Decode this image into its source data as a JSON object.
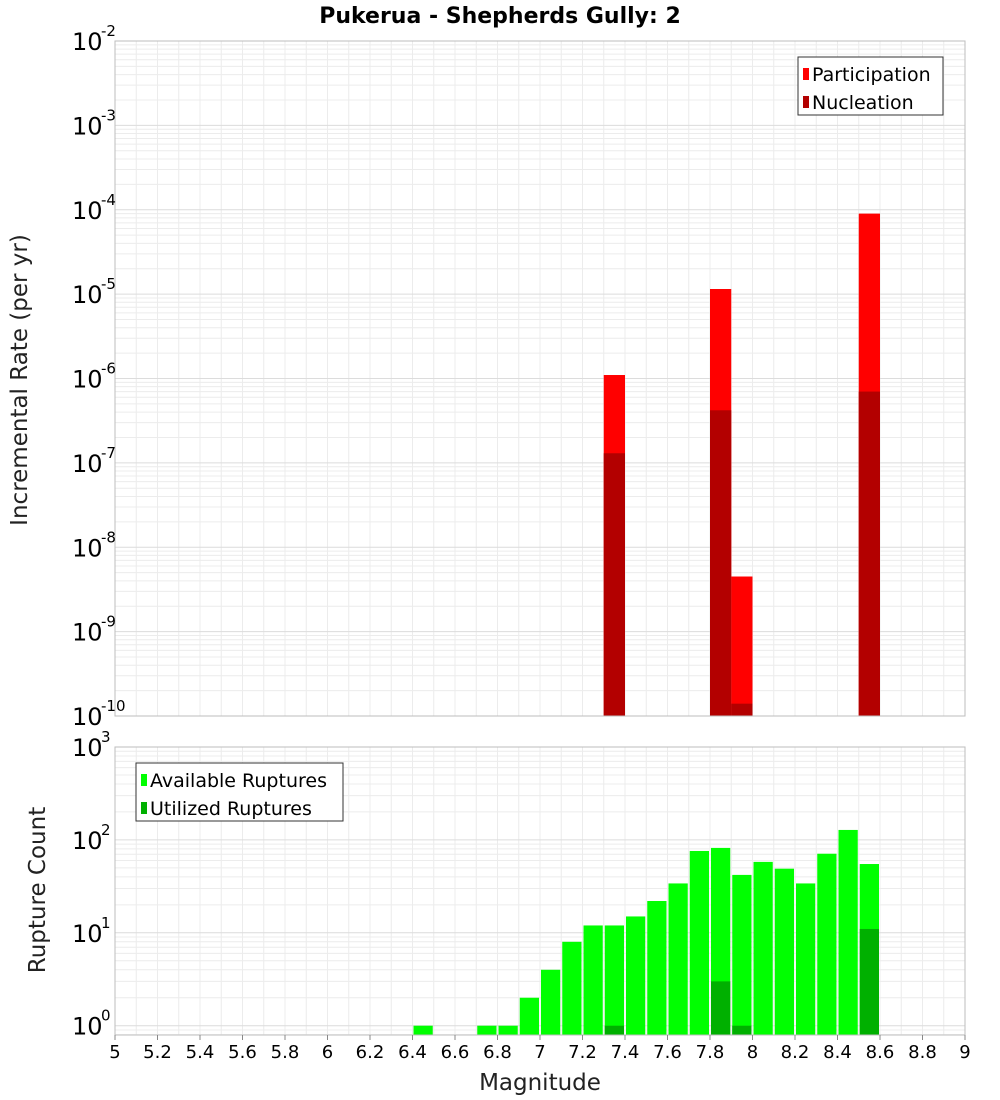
{
  "colors": {
    "participation": "#ff0000",
    "nucleation": "#b30000",
    "available": "#00ff00",
    "utilized": "#00b000",
    "grid": "#ececec",
    "frame": "#bdbdbd"
  },
  "chart_data": [
    {
      "id": "rates",
      "type": "bar",
      "title": "Pukerua - Shepherds Gully: 2",
      "xlabel": "",
      "ylabel": "Incremental Rate (per yr)",
      "xlim": [
        5,
        9
      ],
      "yscale": "log",
      "ylim_exp": [
        -10,
        -2
      ],
      "yticks": [
        {
          "base": "10",
          "exp": "-2"
        },
        {
          "base": "10",
          "exp": "-3"
        },
        {
          "base": "10",
          "exp": "-4"
        },
        {
          "base": "10",
          "exp": "-5"
        },
        {
          "base": "10",
          "exp": "-6"
        },
        {
          "base": "10",
          "exp": "-7"
        },
        {
          "base": "10",
          "exp": "-8"
        },
        {
          "base": "10",
          "exp": "-9"
        },
        {
          "base": "10",
          "exp": "-10"
        }
      ],
      "bin_width": 0.1,
      "legend": {
        "position": "top-right",
        "entries": [
          "Participation",
          "Nucleation"
        ]
      },
      "series": [
        {
          "name": "Participation",
          "points": [
            {
              "x": 7.35,
              "y": 1.1e-06
            },
            {
              "x": 7.85,
              "y": 1.15e-05
            },
            {
              "x": 7.95,
              "y": 4.5e-09
            },
            {
              "x": 8.55,
              "y": 9e-05
            }
          ]
        },
        {
          "name": "Nucleation",
          "points": [
            {
              "x": 7.35,
              "y": 1.3e-07
            },
            {
              "x": 7.85,
              "y": 4.2e-07
            },
            {
              "x": 7.95,
              "y": 1.4e-10
            },
            {
              "x": 8.55,
              "y": 7e-07
            }
          ]
        }
      ]
    },
    {
      "id": "counts",
      "type": "bar",
      "xlabel": "Magnitude",
      "ylabel": "Rupture Count",
      "xlim": [
        5,
        9
      ],
      "yscale": "log",
      "ylim_exp": [
        -0.1,
        3
      ],
      "yticks": [
        {
          "base": "10",
          "exp": "3"
        },
        {
          "base": "10",
          "exp": "2"
        },
        {
          "base": "10",
          "exp": "1"
        },
        {
          "base": "10",
          "exp": "0"
        }
      ],
      "xticks": [
        "5",
        "5.2",
        "5.4",
        "5.6",
        "5.8",
        "6",
        "6.2",
        "6.4",
        "6.6",
        "6.8",
        "7",
        "7.2",
        "7.4",
        "7.6",
        "7.8",
        "8",
        "8.2",
        "8.4",
        "8.6",
        "8.8",
        "9"
      ],
      "bin_width": 0.1,
      "legend": {
        "position": "top-left",
        "entries": [
          "Available Ruptures",
          "Utilized Ruptures"
        ]
      },
      "series": [
        {
          "name": "Available Ruptures",
          "points": [
            {
              "x": 6.45,
              "y": 1
            },
            {
              "x": 6.75,
              "y": 1
            },
            {
              "x": 6.85,
              "y": 1
            },
            {
              "x": 6.95,
              "y": 2
            },
            {
              "x": 7.05,
              "y": 4
            },
            {
              "x": 7.15,
              "y": 8
            },
            {
              "x": 7.25,
              "y": 12
            },
            {
              "x": 7.35,
              "y": 12
            },
            {
              "x": 7.45,
              "y": 15
            },
            {
              "x": 7.55,
              "y": 22
            },
            {
              "x": 7.65,
              "y": 34
            },
            {
              "x": 7.75,
              "y": 76
            },
            {
              "x": 7.85,
              "y": 82
            },
            {
              "x": 7.95,
              "y": 42
            },
            {
              "x": 8.05,
              "y": 58
            },
            {
              "x": 8.15,
              "y": 49
            },
            {
              "x": 8.25,
              "y": 34
            },
            {
              "x": 8.35,
              "y": 71
            },
            {
              "x": 8.45,
              "y": 128
            },
            {
              "x": 8.55,
              "y": 55
            }
          ]
        },
        {
          "name": "Utilized Ruptures",
          "points": [
            {
              "x": 7.35,
              "y": 1
            },
            {
              "x": 7.85,
              "y": 3
            },
            {
              "x": 7.95,
              "y": 1
            },
            {
              "x": 8.55,
              "y": 11
            }
          ]
        }
      ]
    }
  ]
}
